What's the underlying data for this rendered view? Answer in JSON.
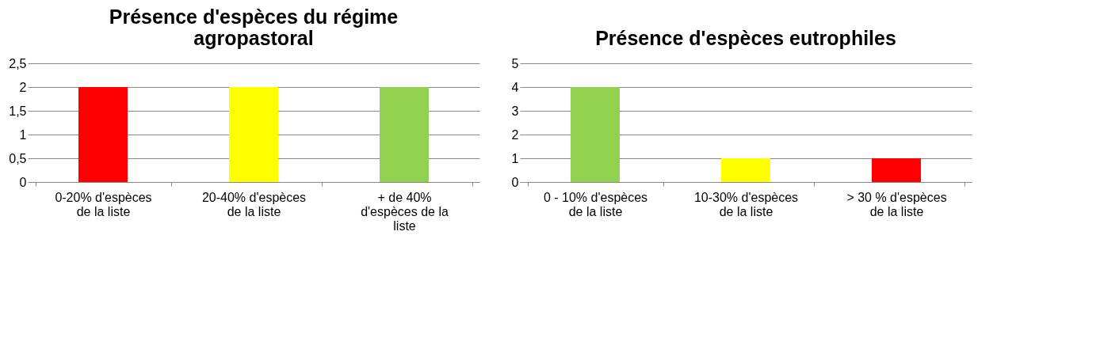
{
  "chart_data": [
    {
      "type": "bar",
      "title": "Présence d'espèces du régime agropastoral",
      "categories": [
        "0-20% d'espèces de la liste",
        "20-40% d'espèces de la liste",
        "+ de 40% d'espèces de la liste"
      ],
      "values": [
        2,
        2,
        2
      ],
      "colors": [
        "#ff0000",
        "#ffff00",
        "#92d050"
      ],
      "ylim": [
        0,
        2.5
      ],
      "yticks": [
        0,
        {
          "value": 0.5,
          "label": "0,5"
        },
        1,
        {
          "value": 1.5,
          "label": "1,5"
        },
        2,
        {
          "value": 2.5,
          "label": "2,5"
        }
      ],
      "grid": "y"
    },
    {
      "type": "bar",
      "title": "Présence d'espèces eutrophiles",
      "categories": [
        "0 - 10% d'espèces de la liste",
        "10-30% d'espèces de la liste",
        "> 30 %  d'espèces de la liste"
      ],
      "values": [
        4,
        1,
        1
      ],
      "colors": [
        "#92d050",
        "#ffff00",
        "#ff0000"
      ],
      "ylim": [
        0,
        5
      ],
      "yticks": [
        0,
        1,
        2,
        3,
        4,
        5
      ],
      "grid": "y"
    }
  ]
}
